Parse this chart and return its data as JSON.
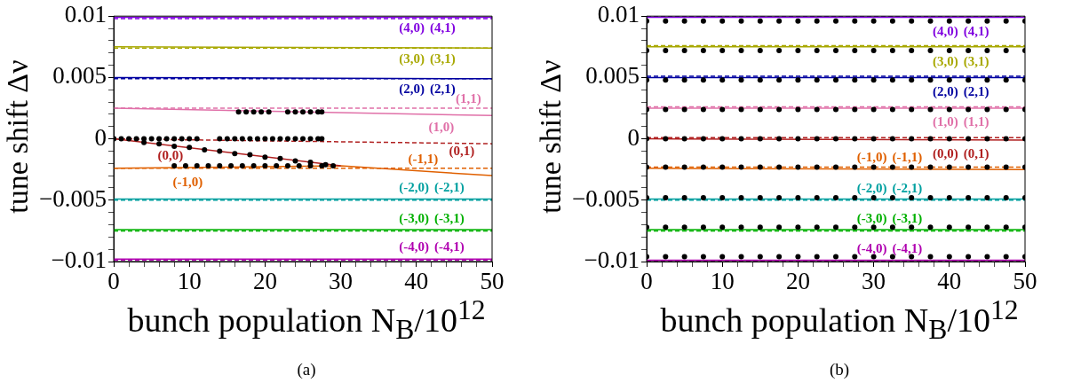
{
  "chart_data": [
    {
      "type": "line",
      "xlabel": "bunch population N$_{B}$/10$^{12}$",
      "ylabel": "tune shift Δν",
      "annotations": [
        "(a)"
      ],
      "xlim": [
        0,
        50
      ],
      "ylim": [
        -0.01,
        0.01
      ],
      "xticks": [
        0,
        {
          "value": 2,
          "label": null
        },
        {
          "value": 4,
          "label": null
        },
        {
          "value": 6,
          "label": null
        },
        {
          "value": 8,
          "label": null
        },
        10,
        {
          "value": 12,
          "label": null
        },
        {
          "value": 14,
          "label": null
        },
        {
          "value": 16,
          "label": null
        },
        {
          "value": 18,
          "label": null
        },
        20,
        {
          "value": 22,
          "label": null
        },
        {
          "value": 24,
          "label": null
        },
        {
          "value": 26,
          "label": null
        },
        {
          "value": 28,
          "label": null
        },
        30,
        {
          "value": 32,
          "label": null
        },
        {
          "value": 34,
          "label": null
        },
        {
          "value": 36,
          "label": null
        },
        {
          "value": 38,
          "label": null
        },
        40,
        {
          "value": 42,
          "label": null
        },
        {
          "value": 44,
          "label": null
        },
        {
          "value": 46,
          "label": null
        },
        {
          "value": 48,
          "label": null
        },
        50
      ],
      "yticks": [
        {
          "value": -0.01,
          "label": "−0.01"
        },
        {
          "value": -0.009,
          "label": null
        },
        {
          "value": -0.008,
          "label": null
        },
        {
          "value": -0.007,
          "label": null
        },
        {
          "value": -0.006,
          "label": null
        },
        {
          "value": -0.005,
          "label": "−0.005"
        },
        {
          "value": -0.004,
          "label": null
        },
        {
          "value": -0.003,
          "label": null
        },
        {
          "value": -0.002,
          "label": null
        },
        {
          "value": -0.001,
          "label": null
        },
        0,
        {
          "value": 0.001,
          "label": null
        },
        {
          "value": 0.002,
          "label": null
        },
        {
          "value": 0.003,
          "label": null
        },
        {
          "value": 0.004,
          "label": null
        },
        0.005,
        {
          "value": 0.006,
          "label": null
        },
        {
          "value": 0.007,
          "label": null
        },
        {
          "value": 0.008,
          "label": null
        },
        {
          "value": 0.009,
          "label": null
        },
        0.01
      ],
      "series": [
        {
          "name": "(4,0)",
          "color": "#8000e0",
          "type": "line",
          "line_style": "solid",
          "x": [
            0,
            50
          ],
          "values": [
            0.0099,
            0.0099
          ]
        },
        {
          "name": "(4,1)",
          "color": "#8000e0",
          "type": "line",
          "line_style": "dashed",
          "x": [
            0,
            50
          ],
          "values": [
            0.0098,
            0.0098
          ]
        },
        {
          "name": "(3,0)",
          "color": "#a8a800",
          "type": "line",
          "line_style": "solid",
          "x": [
            0,
            50
          ],
          "values": [
            0.0075,
            0.0074
          ]
        },
        {
          "name": "(3,1)",
          "color": "#a8a800",
          "type": "line",
          "line_style": "dashed",
          "x": [
            0,
            50
          ],
          "values": [
            0.0074,
            0.0074
          ]
        },
        {
          "name": "(2,0)",
          "color": "#0000a0",
          "type": "line",
          "line_style": "solid",
          "x": [
            0,
            50
          ],
          "values": [
            0.005,
            0.0049
          ]
        },
        {
          "name": "(2,1)",
          "color": "#0000a0",
          "type": "line",
          "line_style": "dashed",
          "x": [
            0,
            50
          ],
          "values": [
            0.0049,
            0.0049
          ]
        },
        {
          "name": "(1,0)",
          "color": "#e070a8",
          "type": "line",
          "line_style": "solid",
          "x": [
            0,
            50
          ],
          "values": [
            0.0025,
            0.0019
          ]
        },
        {
          "name": "(1,1)",
          "color": "#e070a8",
          "type": "line",
          "line_style": "dashed",
          "x": [
            0,
            50
          ],
          "values": [
            0.0025,
            0.0025
          ]
        },
        {
          "name": "(0,0)",
          "color": "#b02020",
          "type": "line",
          "line_style": "solid",
          "x": [
            0,
            30
          ],
          "values": [
            0,
            -0.0022
          ]
        },
        {
          "name": "(0,1)",
          "color": "#b02020",
          "type": "line",
          "line_style": "dashed",
          "x": [
            0,
            50
          ],
          "values": [
            0,
            -0.0004
          ]
        },
        {
          "name": "(-1,0)",
          "color": "#e06000",
          "type": "line",
          "line_style": "solid",
          "x": [
            0,
            30,
            50
          ],
          "values": [
            -0.0024,
            -0.0022,
            -0.003
          ]
        },
        {
          "name": "(-1,1)",
          "color": "#e06000",
          "type": "line",
          "line_style": "dashed",
          "x": [
            0,
            50
          ],
          "values": [
            -0.0024,
            -0.0024
          ]
        },
        {
          "name": "(-2,0)",
          "color": "#00a0a0",
          "type": "line",
          "line_style": "solid",
          "x": [
            0,
            50
          ],
          "values": [
            -0.0049,
            -0.0049
          ]
        },
        {
          "name": "(-2,1)",
          "color": "#00a0a0",
          "type": "line",
          "line_style": "dashed",
          "x": [
            0,
            50
          ],
          "values": [
            -0.005,
            -0.005
          ]
        },
        {
          "name": "(-3,0)",
          "color": "#00b000",
          "type": "line",
          "line_style": "solid",
          "x": [
            0,
            50
          ],
          "values": [
            -0.0074,
            -0.0074
          ]
        },
        {
          "name": "(-3,1)",
          "color": "#00b000",
          "type": "line",
          "line_style": "dashed",
          "x": [
            0,
            50
          ],
          "values": [
            -0.0075,
            -0.0075
          ]
        },
        {
          "name": "(-4,0)",
          "color": "#b000b0",
          "type": "line",
          "line_style": "solid",
          "x": [
            0,
            50
          ],
          "values": [
            -0.0098,
            -0.0098
          ]
        },
        {
          "name": "(-4,1)",
          "color": "#b000b0",
          "type": "line",
          "line_style": "dashed",
          "x": [
            0,
            50
          ],
          "values": [
            -0.0099,
            -0.0099
          ]
        },
        {
          "color": "#000000",
          "type": "scatter",
          "marker": "circle",
          "x": [
            0,
            1,
            2,
            3,
            4,
            5,
            6,
            7,
            8,
            9,
            10,
            11,
            14,
            15,
            16,
            17,
            18,
            19,
            20,
            21,
            22,
            23,
            24,
            25,
            26,
            27,
            27.5
          ],
          "values": [
            0,
            0,
            0,
            0,
            0,
            0,
            0,
            0,
            0,
            0,
            0,
            0,
            0,
            0,
            0,
            0,
            0,
            0,
            0,
            0,
            0,
            0,
            0,
            0,
            0,
            0,
            0
          ]
        },
        {
          "color": "#000000",
          "type": "scatter",
          "marker": "circle",
          "x": [
            0,
            4,
            6,
            8,
            10,
            12,
            14,
            16,
            18,
            20,
            22,
            24,
            26,
            28,
            29
          ],
          "values": [
            0,
            -0.0003,
            -0.0004,
            -0.0006,
            -0.0007,
            -0.0009,
            -0.001,
            -0.0012,
            -0.0013,
            -0.0015,
            -0.0016,
            -0.0018,
            -0.0019,
            -0.0021,
            -0.0022
          ]
        },
        {
          "color": "#000000",
          "type": "scatter",
          "marker": "circle",
          "x": [
            8,
            9.5,
            11,
            12.5,
            14,
            15.5,
            17,
            18.5,
            20,
            21.5,
            23,
            24.5,
            26,
            27.5
          ],
          "values": [
            -0.0022,
            -0.0022,
            -0.0022,
            -0.0022,
            -0.0022,
            -0.0022,
            -0.0022,
            -0.0022,
            -0.0022,
            -0.0022,
            -0.0022,
            -0.0022,
            -0.0022,
            -0.0022
          ]
        },
        {
          "color": "#000000",
          "type": "scatter",
          "marker": "circle",
          "x": [
            16.5,
            17.5,
            18.5,
            19.5,
            20.5,
            23,
            24,
            25,
            26,
            27,
            27.5
          ],
          "values": [
            0.0022,
            0.0022,
            0.0022,
            0.0022,
            0.0022,
            0.0022,
            0.0022,
            0.0022,
            0.0022,
            0.0022,
            0.0022
          ]
        }
      ]
    },
    {
      "type": "line",
      "xlabel": "bunch population N$_{B}$/10$^{12}$",
      "ylabel": "tune shift Δν",
      "annotations": [
        "(b)"
      ],
      "xlim": [
        0,
        50
      ],
      "ylim": [
        -0.01,
        0.01
      ],
      "xticks": [
        0,
        {
          "value": 2,
          "label": null
        },
        {
          "value": 4,
          "label": null
        },
        {
          "value": 6,
          "label": null
        },
        {
          "value": 8,
          "label": null
        },
        10,
        {
          "value": 12,
          "label": null
        },
        {
          "value": 14,
          "label": null
        },
        {
          "value": 16,
          "label": null
        },
        {
          "value": 18,
          "label": null
        },
        20,
        {
          "value": 22,
          "label": null
        },
        {
          "value": 24,
          "label": null
        },
        {
          "value": 26,
          "label": null
        },
        {
          "value": 28,
          "label": null
        },
        30,
        {
          "value": 32,
          "label": null
        },
        {
          "value": 34,
          "label": null
        },
        {
          "value": 36,
          "label": null
        },
        {
          "value": 38,
          "label": null
        },
        40,
        {
          "value": 42,
          "label": null
        },
        {
          "value": 44,
          "label": null
        },
        {
          "value": 46,
          "label": null
        },
        {
          "value": 48,
          "label": null
        },
        50
      ],
      "yticks": [
        {
          "value": -0.01,
          "label": "−0.01"
        },
        {
          "value": -0.009,
          "label": null
        },
        {
          "value": -0.008,
          "label": null
        },
        {
          "value": -0.007,
          "label": null
        },
        {
          "value": -0.006,
          "label": null
        },
        {
          "value": -0.005,
          "label": "−0.005"
        },
        {
          "value": -0.004,
          "label": null
        },
        {
          "value": -0.003,
          "label": null
        },
        {
          "value": -0.002,
          "label": null
        },
        {
          "value": -0.001,
          "label": null
        },
        0,
        {
          "value": 0.001,
          "label": null
        },
        {
          "value": 0.002,
          "label": null
        },
        {
          "value": 0.003,
          "label": null
        },
        {
          "value": 0.004,
          "label": null
        },
        0.005,
        {
          "value": 0.006,
          "label": null
        },
        {
          "value": 0.007,
          "label": null
        },
        {
          "value": 0.008,
          "label": null
        },
        {
          "value": 0.009,
          "label": null
        },
        0.01
      ],
      "series": [
        {
          "name": "(4,0)",
          "color": "#8000e0",
          "type": "line",
          "line_style": "solid",
          "x": [
            0,
            50
          ],
          "values": [
            0.0099,
            0.0099
          ]
        },
        {
          "name": "(4,1)",
          "color": "#8000e0",
          "type": "line",
          "line_style": "dashed",
          "x": [
            0,
            50
          ],
          "values": [
            0.01,
            0.01
          ]
        },
        {
          "name": "(3,0)",
          "color": "#a8a800",
          "type": "line",
          "line_style": "solid",
          "x": [
            0,
            50
          ],
          "values": [
            0.0075,
            0.0075
          ]
        },
        {
          "name": "(3,1)",
          "color": "#a8a800",
          "type": "line",
          "line_style": "dashed",
          "x": [
            0,
            50
          ],
          "values": [
            0.0076,
            0.0076
          ]
        },
        {
          "name": "(2,0)",
          "color": "#0000a0",
          "type": "line",
          "line_style": "solid",
          "x": [
            0,
            50
          ],
          "values": [
            0.005,
            0.005
          ]
        },
        {
          "name": "(2,1)",
          "color": "#0000a0",
          "type": "line",
          "line_style": "dashed",
          "x": [
            0,
            50
          ],
          "values": [
            0.0051,
            0.0051
          ]
        },
        {
          "name": "(1,0)",
          "color": "#e070a8",
          "type": "line",
          "line_style": "solid",
          "x": [
            0,
            50
          ],
          "values": [
            0.0025,
            0.0025
          ]
        },
        {
          "name": "(1,1)",
          "color": "#e070a8",
          "type": "line",
          "line_style": "dashed",
          "x": [
            0,
            50
          ],
          "values": [
            0.0026,
            0.0026
          ]
        },
        {
          "name": "(0,0)",
          "color": "#b02020",
          "type": "line",
          "line_style": "solid",
          "x": [
            0,
            50
          ],
          "values": [
            0,
            -0.0001
          ]
        },
        {
          "name": "(0,1)",
          "color": "#b02020",
          "type": "line",
          "line_style": "dashed",
          "x": [
            0,
            50
          ],
          "values": [
            0.0001,
            0.0001
          ]
        },
        {
          "name": "(-1,0)",
          "color": "#e06000",
          "type": "line",
          "line_style": "solid",
          "x": [
            0,
            50
          ],
          "values": [
            -0.0024,
            -0.0025
          ]
        },
        {
          "name": "(-1,1)",
          "color": "#e06000",
          "type": "line",
          "line_style": "dashed",
          "x": [
            0,
            50
          ],
          "values": [
            -0.0023,
            -0.0023
          ]
        },
        {
          "name": "(-2,0)",
          "color": "#00a0a0",
          "type": "line",
          "line_style": "solid",
          "x": [
            0,
            50
          ],
          "values": [
            -0.0049,
            -0.0049
          ]
        },
        {
          "name": "(-2,1)",
          "color": "#00a0a0",
          "type": "line",
          "line_style": "dashed",
          "x": [
            0,
            50
          ],
          "values": [
            -0.005,
            -0.005
          ]
        },
        {
          "name": "(-3,0)",
          "color": "#00b000",
          "type": "line",
          "line_style": "solid",
          "x": [
            0,
            50
          ],
          "values": [
            -0.0074,
            -0.0074
          ]
        },
        {
          "name": "(-3,1)",
          "color": "#00b000",
          "type": "line",
          "line_style": "dashed",
          "x": [
            0,
            50
          ],
          "values": [
            -0.0075,
            -0.0075
          ]
        },
        {
          "name": "(-4,0)",
          "color": "#b000b0",
          "type": "line",
          "line_style": "solid",
          "x": [
            0,
            50
          ],
          "values": [
            -0.0099,
            -0.0099
          ]
        },
        {
          "name": "(-4,1)",
          "color": "#b000b0",
          "type": "line",
          "line_style": "dashed",
          "x": [
            0,
            50
          ],
          "values": [
            -0.01,
            -0.01
          ]
        },
        {
          "color": "#000000",
          "type": "scatter",
          "marker": "circle",
          "x": [
            0,
            2.5,
            5,
            7.5,
            10,
            12.5,
            15,
            17.5,
            20,
            22.5,
            25,
            27.5,
            30,
            32.5,
            35,
            37.5,
            40,
            42.5,
            45,
            47.5,
            50
          ],
          "values": [
            0.0096,
            0.0096,
            0.0096,
            0.0096,
            0.0096,
            0.0096,
            0.0096,
            0.0096,
            0.0096,
            0.0096,
            0.0096,
            0.0096,
            0.0096,
            0.0096,
            0.0096,
            0.0096,
            0.0096,
            0.0096,
            0.0096,
            0.0096,
            0.0096
          ]
        },
        {
          "color": "#000000",
          "type": "scatter",
          "marker": "circle",
          "x": [
            0,
            2.5,
            5,
            7.5,
            10,
            12.5,
            15,
            17.5,
            20,
            22.5,
            25,
            27.5,
            30,
            32.5,
            35,
            37.5,
            40,
            42.5,
            45,
            47.5,
            50
          ],
          "values": [
            0.0072,
            0.0072,
            0.0072,
            0.0072,
            0.0072,
            0.0072,
            0.0072,
            0.0072,
            0.0072,
            0.0072,
            0.0072,
            0.0072,
            0.0072,
            0.0072,
            0.0072,
            0.0072,
            0.0072,
            0.0072,
            0.0072,
            0.0072,
            0.0072
          ]
        },
        {
          "color": "#000000",
          "type": "scatter",
          "marker": "circle",
          "x": [
            0,
            2.5,
            5,
            7.5,
            10,
            12.5,
            15,
            17.5,
            20,
            22.5,
            25,
            27.5,
            30,
            32.5,
            35,
            37.5,
            40,
            42.5,
            45,
            47.5,
            50
          ],
          "values": [
            0.0048,
            0.0048,
            0.0048,
            0.0048,
            0.0048,
            0.0048,
            0.0048,
            0.0048,
            0.0048,
            0.0048,
            0.0048,
            0.0048,
            0.0048,
            0.0048,
            0.0048,
            0.0048,
            0.0048,
            0.0048,
            0.0048,
            0.0048,
            0.0048
          ]
        },
        {
          "color": "#000000",
          "type": "scatter",
          "marker": "circle",
          "x": [
            0,
            2.5,
            5,
            7.5,
            10,
            12.5,
            15,
            17.5,
            20,
            22.5,
            25,
            27.5,
            30,
            32.5,
            35,
            37.5,
            40,
            42.5,
            45,
            47.5,
            50
          ],
          "values": [
            0.0024,
            0.0024,
            0.0024,
            0.0024,
            0.0024,
            0.0024,
            0.0024,
            0.0024,
            0.0024,
            0.0024,
            0.0024,
            0.0024,
            0.0024,
            0.0024,
            0.0024,
            0.0024,
            0.0024,
            0.0024,
            0.0024,
            0.0024,
            0.0024
          ]
        },
        {
          "color": "#000000",
          "type": "scatter",
          "marker": "circle",
          "x": [
            0,
            2.5,
            5,
            7.5,
            10,
            12.5,
            15,
            17.5,
            20,
            22.5,
            25,
            27.5,
            30,
            32.5,
            35,
            37.5,
            40,
            42.5,
            45,
            47.5,
            50
          ],
          "values": [
            0,
            0,
            0,
            0,
            0,
            0,
            0,
            0,
            0,
            0,
            0,
            0,
            0,
            0,
            0,
            0,
            0,
            0,
            0,
            0,
            0
          ]
        },
        {
          "color": "#000000",
          "type": "scatter",
          "marker": "circle",
          "x": [
            0,
            2.5,
            5,
            7.5,
            10,
            12.5,
            15,
            17.5,
            20,
            22.5,
            25,
            27.5,
            30,
            32.5,
            35,
            37.5,
            40,
            42.5,
            45,
            47.5,
            50
          ],
          "values": [
            -0.0023,
            -0.0023,
            -0.0023,
            -0.0023,
            -0.0023,
            -0.0023,
            -0.0023,
            -0.0023,
            -0.0023,
            -0.0023,
            -0.0023,
            -0.0023,
            -0.0023,
            -0.0023,
            -0.0023,
            -0.0023,
            -0.0023,
            -0.0023,
            -0.0023,
            -0.0023,
            -0.0023
          ]
        },
        {
          "color": "#000000",
          "type": "scatter",
          "marker": "circle",
          "x": [
            0,
            2.5,
            5,
            7.5,
            10,
            12.5,
            15,
            17.5,
            20,
            22.5,
            25,
            27.5,
            30,
            32.5,
            35,
            37.5,
            40,
            42.5,
            45,
            47.5,
            50
          ],
          "values": [
            -0.0048,
            -0.0048,
            -0.0048,
            -0.0048,
            -0.0048,
            -0.0048,
            -0.0048,
            -0.0048,
            -0.0048,
            -0.0048,
            -0.0048,
            -0.0048,
            -0.0048,
            -0.0048,
            -0.0048,
            -0.0048,
            -0.0048,
            -0.0048,
            -0.0048,
            -0.0048,
            -0.0048
          ]
        },
        {
          "color": "#000000",
          "type": "scatter",
          "marker": "circle",
          "x": [
            0,
            2.5,
            5,
            7.5,
            10,
            12.5,
            15,
            17.5,
            20,
            22.5,
            25,
            27.5,
            30,
            32.5,
            35,
            37.5,
            40,
            42.5,
            45,
            47.5,
            50
          ],
          "values": [
            -0.0072,
            -0.0072,
            -0.0072,
            -0.0072,
            -0.0072,
            -0.0072,
            -0.0072,
            -0.0072,
            -0.0072,
            -0.0072,
            -0.0072,
            -0.0072,
            -0.0072,
            -0.0072,
            -0.0072,
            -0.0072,
            -0.0072,
            -0.0072,
            -0.0072,
            -0.0072,
            -0.0072
          ]
        },
        {
          "color": "#000000",
          "type": "scatter",
          "marker": "circle",
          "x": [
            0,
            2.5,
            5,
            7.5,
            10,
            12.5,
            15,
            17.5,
            20,
            22.5,
            25,
            27.5,
            30,
            32.5,
            35,
            37.5,
            40,
            42.5,
            45,
            47.5,
            50
          ],
          "values": [
            -0.0096,
            -0.0096,
            -0.0096,
            -0.0096,
            -0.0096,
            -0.0096,
            -0.0096,
            -0.0096,
            -0.0096,
            -0.0096,
            -0.0096,
            -0.0096,
            -0.0096,
            -0.0096,
            -0.0096,
            -0.0096,
            -0.0096,
            -0.0096,
            -0.0096,
            -0.0096,
            -0.0096
          ]
        }
      ]
    }
  ]
}
